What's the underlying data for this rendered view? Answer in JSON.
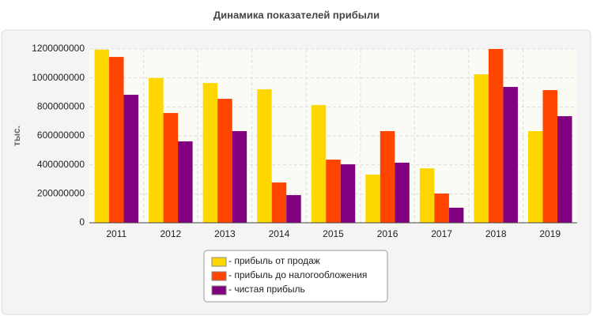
{
  "chart_data": {
    "type": "bar",
    "title": "Динамика показателей прибыли",
    "y_label": "тыс.",
    "categories": [
      "2011",
      "2012",
      "2013",
      "2014",
      "2015",
      "2016",
      "2017",
      "2018",
      "2019"
    ],
    "series": [
      {
        "name": "- прибыль от продаж",
        "color": "#ffd700",
        "values": [
          1195000000,
          1000000000,
          965000000,
          922000000,
          813000000,
          333000000,
          376000000,
          1025000000,
          633000000
        ]
      },
      {
        "name": "- прибыль до налогообложения",
        "color": "#ff4500",
        "values": [
          1145000000,
          758000000,
          856000000,
          278000000,
          436000000,
          633000000,
          202000000,
          1200000000,
          916000000
        ]
      },
      {
        "name": "- чистая прибыль",
        "color": "#800080",
        "values": [
          884000000,
          562000000,
          633000000,
          191000000,
          404000000,
          415000000,
          104000000,
          938000000,
          736000000
        ]
      }
    ],
    "ylim": [
      0,
      1200000000
    ],
    "yticks": [
      0,
      200000000,
      400000000,
      600000000,
      800000000,
      1000000000,
      1200000000
    ],
    "grid": true
  }
}
